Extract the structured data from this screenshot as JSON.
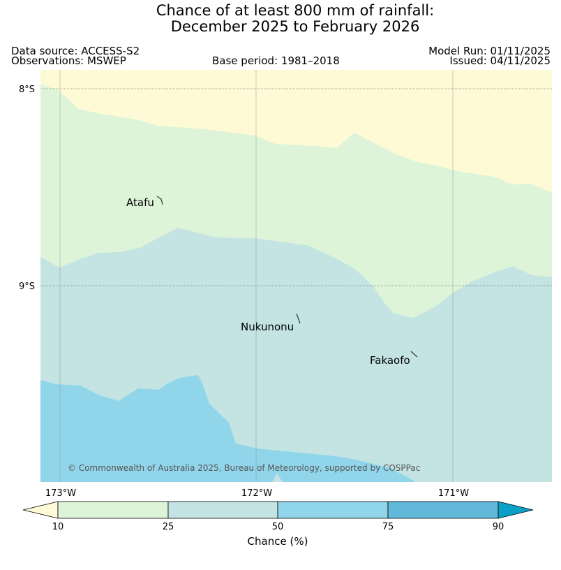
{
  "title": {
    "line1": "Chance of at least 800 mm of rainfall:",
    "line2": "December 2025 to February 2026"
  },
  "meta": {
    "data_source": "Data source: ACCESS-S2",
    "observations": "Observations: MSWEP",
    "base_period": "Base period: 1981–2018",
    "model_run": "Model Run: 01/11/2025",
    "issued": "Issued: 04/11/2025"
  },
  "map": {
    "lat_labels": [
      "8°S",
      "9°S"
    ],
    "lon_labels": [
      "173°W",
      "172°W",
      "171°W"
    ],
    "places": [
      {
        "name": "Atafu"
      },
      {
        "name": "Nukunonu"
      },
      {
        "name": "Fakaofo"
      }
    ],
    "credit": "© Commonwealth of Australia 2025, Bureau of Meteorology, supported by COSPPac",
    "colors": {
      "below_10": "#fefad6",
      "10_25": "#def4d8",
      "25_50": "#c3e4e2",
      "50_75": "#91d5ea",
      "75_90": "#61b8d8",
      "above_90": "#0aa0c8"
    }
  },
  "colorbar": {
    "ticks": [
      "10",
      "25",
      "50",
      "75",
      "90"
    ],
    "label": "Chance (%)"
  }
}
